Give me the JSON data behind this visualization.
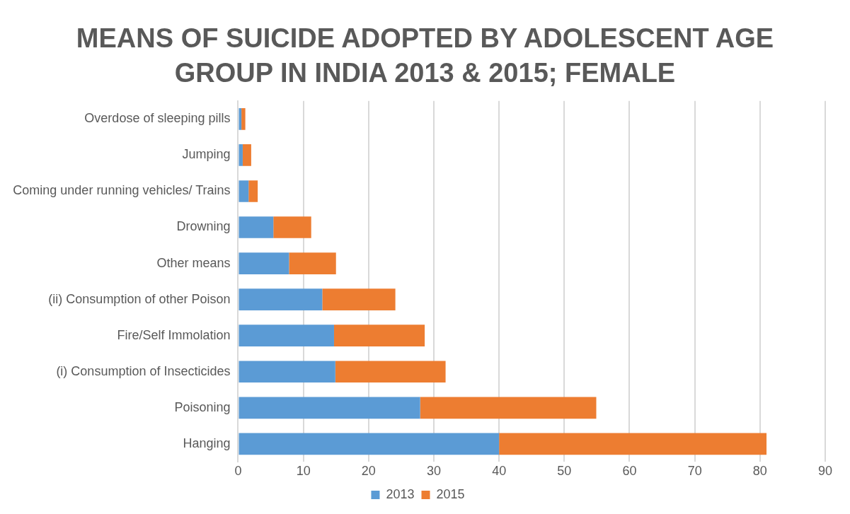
{
  "chart_data": {
    "type": "bar",
    "orientation": "horizontal",
    "stacked": true,
    "title": "MEANS OF SUICIDE ADOPTED BY ADOLESCENT AGE GROUP IN INDIA 2013 & 2015; FEMALE",
    "categories": [
      "Overdose of sleeping pills",
      "Jumping",
      "Coming under running vehicles/ Trains",
      "Drowning",
      "Other means",
      "(ii) Consumption of other Poison",
      "Fire/Self Immolation",
      "(i) Consumption of Insecticides",
      "Poisoning",
      "Hanging"
    ],
    "series": [
      {
        "name": "2013",
        "color": "#5b9bd5",
        "values": [
          0.5,
          0.7,
          1.6,
          5.4,
          7.8,
          12.9,
          14.7,
          14.9,
          27.9,
          40.0
        ]
      },
      {
        "name": "2015",
        "color": "#ed7d31",
        "values": [
          0.6,
          1.3,
          1.4,
          5.8,
          7.2,
          11.2,
          13.9,
          16.9,
          27.0,
          41.0
        ]
      }
    ],
    "xlim": [
      0,
      90
    ],
    "xticks": [
      0,
      10,
      20,
      30,
      40,
      50,
      60,
      70,
      80,
      90
    ],
    "grid": "x",
    "legend": "bottom"
  }
}
